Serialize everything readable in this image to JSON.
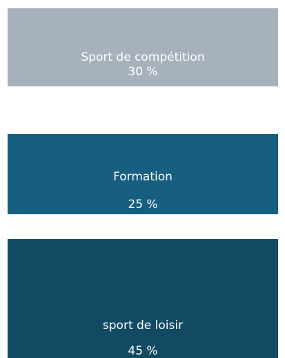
{
  "items": [
    {
      "label": "Sport de compétition",
      "value": "30 %"
    },
    {
      "label": "Formation",
      "value": "25 %"
    },
    {
      "label": "sport de loisir",
      "value": "45 %"
    }
  ]
}
